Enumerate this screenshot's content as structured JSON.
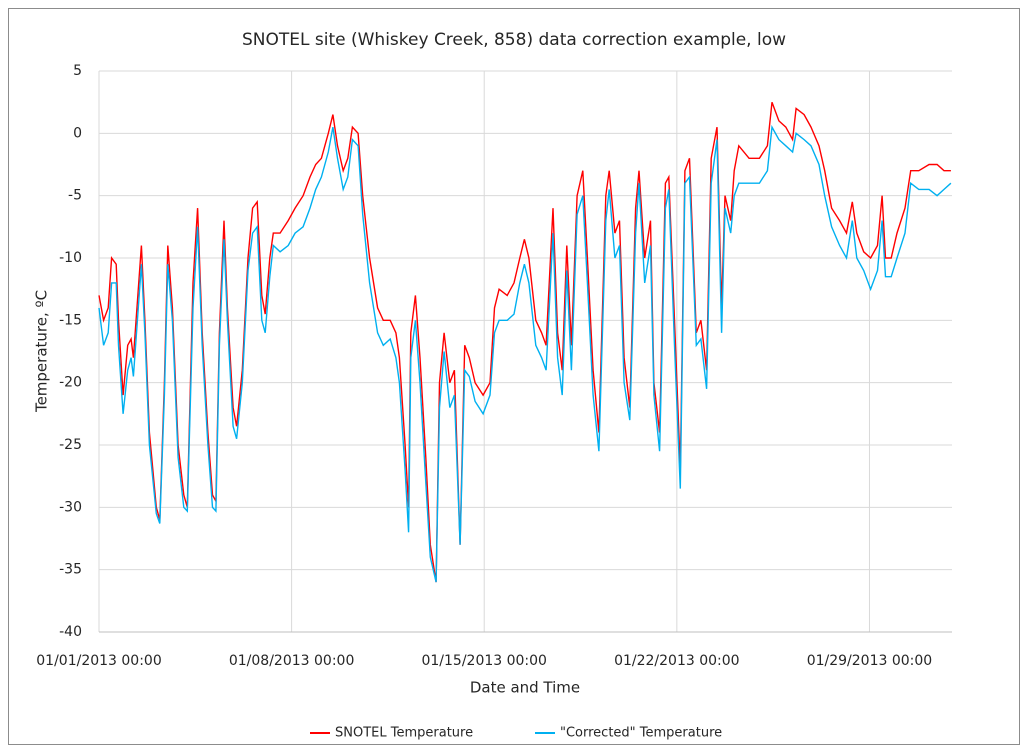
{
  "chart_data": {
    "type": "line",
    "title": "SNOTEL site (Whiskey Creek, 858) data correction example, low",
    "x_label": "Date and Time",
    "y_label": "Temperature, ºC",
    "x": [
      "01/01/2013 00:00",
      "01/01/2013 04:00",
      "01/01/2013 08:00",
      "01/01/2013 11:00",
      "01/01/2013 15:00",
      "01/01/2013 17:00",
      "01/01/2013 21:00",
      "01/02/2013 01:00",
      "01/02/2013 04:00",
      "01/02/2013 06:00",
      "01/02/2013 13:00",
      "01/02/2013 16:00",
      "01/02/2013 20:00",
      "01/03/2013 02:00",
      "01/03/2013 05:00",
      "01/03/2013 09:00",
      "01/03/2013 12:00",
      "01/03/2013 16:00",
      "01/03/2013 21:00",
      "01/04/2013 02:00",
      "01/04/2013 05:00",
      "01/04/2013 10:00",
      "01/04/2013 14:00",
      "01/04/2013 18:00",
      "01/04/2013 23:00",
      "01/05/2013 03:00",
      "01/05/2013 06:00",
      "01/05/2013 09:00",
      "01/05/2013 13:00",
      "01/05/2013 16:00",
      "01/05/2013 21:00",
      "01/06/2013 00:00",
      "01/06/2013 05:00",
      "01/06/2013 10:00",
      "01/06/2013 14:00",
      "01/06/2013 18:00",
      "01/06/2013 22:00",
      "01/07/2013 01:00",
      "01/07/2013 05:00",
      "01/07/2013 08:00",
      "01/07/2013 14:00",
      "01/07/2013 21:00",
      "01/08/2013 03:00",
      "01/08/2013 10:00",
      "01/08/2013 16:00",
      "01/08/2013 21:00",
      "01/09/2013 02:00",
      "01/09/2013 08:00",
      "01/09/2013 12:00",
      "01/09/2013 16:00",
      "01/09/2013 21:00",
      "01/10/2013 01:00",
      "01/10/2013 05:00",
      "01/10/2013 10:00",
      "01/10/2013 14:00",
      "01/10/2013 20:00",
      "01/11/2013 03:00",
      "01/11/2013 08:00",
      "01/11/2013 14:00",
      "01/11/2013 19:00",
      "01/11/2013 22:00",
      "01/12/2013 03:00",
      "01/12/2013 06:00",
      "01/12/2013 08:00",
      "01/12/2013 12:00",
      "01/12/2013 16:00",
      "01/12/2013 21:00",
      "01/13/2013 01:00",
      "01/13/2013 06:00",
      "01/13/2013 09:00",
      "01/13/2013 13:00",
      "01/13/2013 18:00",
      "01/13/2013 22:00",
      "01/14/2013 03:00",
      "01/14/2013 07:00",
      "01/14/2013 11:00",
      "01/14/2013 16:00",
      "01/14/2013 23:00",
      "01/15/2013 05:00",
      "01/15/2013 09:00",
      "01/15/2013 13:00",
      "01/15/2013 20:00",
      "01/16/2013 02:00",
      "01/16/2013 07:00",
      "01/16/2013 11:00",
      "01/16/2013 15:00",
      "01/16/2013 21:00",
      "01/17/2013 02:00",
      "01/17/2013 06:00",
      "01/17/2013 12:00",
      "01/17/2013 16:00",
      "01/17/2013 20:00",
      "01/18/2013 00:00",
      "01/18/2013 04:00",
      "01/18/2013 09:00",
      "01/18/2013 14:00",
      "01/18/2013 18:00",
      "01/18/2013 23:00",
      "01/19/2013 04:00",
      "01/19/2013 10:00",
      "01/19/2013 13:00",
      "01/19/2013 18:00",
      "01/19/2013 22:00",
      "01/20/2013 02:00",
      "01/20/2013 07:00",
      "01/20/2013 12:00",
      "01/20/2013 15:00",
      "01/20/2013 20:00",
      "01/21/2013 01:00",
      "01/21/2013 04:00",
      "01/21/2013 09:00",
      "01/21/2013 14:00",
      "01/21/2013 17:00",
      "01/21/2013 22:00",
      "01/22/2013 03:00",
      "01/22/2013 07:00",
      "01/22/2013 11:00",
      "01/22/2013 17:00",
      "01/22/2013 21:00",
      "01/23/2013 02:00",
      "01/23/2013 06:00",
      "01/23/2013 11:00",
      "01/23/2013 15:00",
      "01/23/2013 18:00",
      "01/23/2013 23:00",
      "01/24/2013 02:00",
      "01/24/2013 06:00",
      "01/24/2013 15:00",
      "01/25/2013 00:00",
      "01/25/2013 07:00",
      "01/25/2013 11:00",
      "01/25/2013 17:00",
      "01/25/2013 23:00",
      "01/26/2013 05:00",
      "01/26/2013 08:00",
      "01/26/2013 15:00",
      "01/26/2013 21:00",
      "01/27/2013 04:00",
      "01/27/2013 09:00",
      "01/27/2013 15:00",
      "01/27/2013 22:00",
      "01/28/2013 04:00",
      "01/28/2013 09:00",
      "01/28/2013 13:00",
      "01/28/2013 19:00",
      "01/29/2013 01:00",
      "01/29/2013 07:00",
      "01/29/2013 11:00",
      "01/29/2013 14:00",
      "01/29/2013 19:00",
      "01/30/2013 00:00",
      "01/30/2013 07:00",
      "01/30/2013 12:00",
      "01/30/2013 19:00",
      "01/31/2013 04:00",
      "01/31/2013 11:00",
      "01/31/2013 17:00",
      "01/31/2013 23:00"
    ],
    "series": [
      {
        "name": "SNOTEL Temperature",
        "color": "#ff0000",
        "values": [
          -13,
          -15,
          -14,
          -10,
          -10.5,
          -15,
          -21,
          -17,
          -16.5,
          -18,
          -9,
          -15,
          -24,
          -30,
          -31,
          -20,
          -9,
          -14,
          -25,
          -29,
          -30,
          -12,
          -6,
          -16,
          -24,
          -29,
          -29.5,
          -16,
          -7,
          -14,
          -22,
          -23.5,
          -19,
          -10,
          -6,
          -5.5,
          -13,
          -14.5,
          -10,
          -8,
          -8,
          -7,
          -6,
          -5,
          -3.5,
          -2.5,
          -2,
          0,
          1.5,
          -1,
          -3,
          -2,
          0.5,
          0,
          -5,
          -10,
          -14,
          -15,
          -15,
          -16,
          -18,
          -25,
          -30,
          -16,
          -13,
          -18,
          -26,
          -33,
          -36,
          -20,
          -16,
          -20,
          -19,
          -33,
          -17,
          -18,
          -20,
          -21,
          -20,
          -14,
          -12.5,
          -13,
          -12,
          -10,
          -8.5,
          -10,
          -15,
          -16,
          -17,
          -6,
          -16,
          -19,
          -9,
          -17,
          -5,
          -3,
          -10,
          -19,
          -24,
          -5,
          -3,
          -8,
          -7,
          -18,
          -22,
          -6,
          -3,
          -10,
          -7,
          -20,
          -24,
          -4,
          -3.5,
          -15,
          -27,
          -3,
          -2,
          -16,
          -15,
          -19,
          -2,
          0.5,
          -14,
          -5,
          -7,
          -3,
          -1,
          -2,
          -2,
          -1,
          2.5,
          1,
          0.5,
          -0.5,
          2,
          1.5,
          0.5,
          -1,
          -3,
          -6,
          -7,
          -8,
          -5.5,
          -8,
          -9.5,
          -10,
          -9,
          -5,
          -10,
          -10,
          -8,
          -6,
          -3,
          -3,
          -2.5,
          -2.5,
          -3,
          -3
        ]
      },
      {
        "name": "\"Corrected\" Temperature",
        "color": "#00b0f0",
        "values": [
          -14,
          -17,
          -16,
          -12,
          -12,
          -17,
          -22.5,
          -19,
          -18,
          -19.5,
          -10.5,
          -16,
          -25,
          -30.5,
          -31.3,
          -21,
          -10.5,
          -15,
          -26,
          -30,
          -30.3,
          -14,
          -7.5,
          -17,
          -25,
          -30,
          -30.3,
          -17,
          -8.5,
          -15,
          -23.5,
          -24.5,
          -20,
          -11,
          -8,
          -7.5,
          -15,
          -16,
          -11.5,
          -9,
          -9.5,
          -9,
          -8,
          -7.5,
          -6,
          -4.5,
          -3.5,
          -1.5,
          0.5,
          -2,
          -4.5,
          -3.5,
          -0.5,
          -1,
          -6.5,
          -12,
          -16,
          -17,
          -16.5,
          -18,
          -20,
          -27,
          -32,
          -18,
          -15,
          -20,
          -28,
          -34,
          -36,
          -22,
          -17.5,
          -22,
          -21,
          -33,
          -19,
          -19.5,
          -21.5,
          -22.5,
          -21,
          -16,
          -15,
          -15,
          -14.5,
          -12,
          -10.5,
          -12,
          -17,
          -18,
          -19,
          -8,
          -18,
          -21,
          -11,
          -19,
          -6.5,
          -5,
          -12,
          -21,
          -25.5,
          -7,
          -4.5,
          -10,
          -9,
          -20,
          -23,
          -8,
          -4,
          -12,
          -9,
          -21,
          -25.5,
          -6,
          -4.5,
          -17,
          -28.5,
          -4,
          -3.5,
          -17,
          -16.5,
          -20.5,
          -4,
          -0.5,
          -16,
          -6,
          -8,
          -5,
          -4,
          -4,
          -4,
          -3,
          0.5,
          -0.5,
          -1,
          -1.5,
          0,
          -0.5,
          -1,
          -2.5,
          -5,
          -7.5,
          -9,
          -10,
          -7,
          -10,
          -11,
          -12.5,
          -11,
          -7,
          -11.5,
          -11.5,
          -10,
          -8,
          -4,
          -4.5,
          -4.5,
          -5,
          -4.5,
          -4
        ]
      }
    ],
    "xlim": [
      "01/01/2013 00:00",
      "02/01/2013 00:00"
    ],
    "xticks": [
      "01/01/2013 00:00",
      "01/08/2013 00:00",
      "01/15/2013 00:00",
      "01/22/2013 00:00",
      "01/29/2013 00:00"
    ],
    "ylim": [
      -40,
      5
    ],
    "yticks": [
      -40,
      -35,
      -30,
      -25,
      -20,
      -15,
      -10,
      -5,
      0,
      5
    ],
    "grid": true,
    "legend": "bottom"
  }
}
